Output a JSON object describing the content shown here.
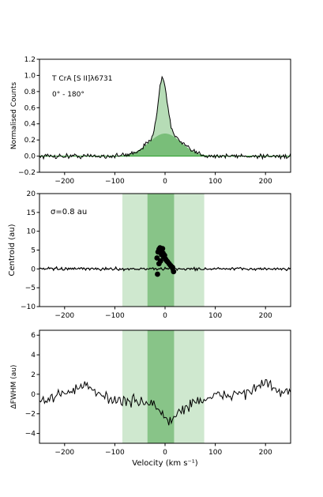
{
  "chart_data": [
    {
      "type": "line",
      "title": "",
      "annotations": [
        "T CrA [S II]λ6731",
        "0° - 180°"
      ],
      "xlabel": "",
      "ylabel": "Normalised Counts",
      "xlim": [
        -250,
        250
      ],
      "ylim": [
        -0.2,
        1.2
      ],
      "xticks": [
        -200,
        -100,
        0,
        100,
        200
      ],
      "yticks": [
        -0.2,
        0.0,
        0.2,
        0.4,
        0.6,
        0.8,
        1.0,
        1.2
      ],
      "grid": false,
      "colors": {
        "line": "#000000",
        "fill_narrow": "#7fbf7f",
        "fill_broad": "#5aaa5a",
        "fit": "#2ca02c"
      },
      "components": [
        {
          "amplitude": 0.68,
          "center": -5,
          "sigma": 9
        },
        {
          "amplitude": 0.28,
          "center": 0,
          "sigma": 32
        }
      ],
      "noise": 0.03
    },
    {
      "type": "scatter",
      "title": "",
      "annotations": [
        "σ=0.8 au"
      ],
      "xlabel": "",
      "ylabel": "Centroid (au)",
      "xlim": [
        -250,
        250
      ],
      "ylim": [
        -10,
        20
      ],
      "xticks": [
        -200,
        -100,
        0,
        100,
        200
      ],
      "yticks": [
        -10,
        -5,
        0,
        5,
        10,
        15,
        20
      ],
      "grid": false,
      "bands": [
        {
          "from": -85,
          "to": 78,
          "color": "#cfe8cf"
        },
        {
          "from": -35,
          "to": 18,
          "color": "#88c488"
        }
      ],
      "points": [
        [
          -14,
          4.5
        ],
        [
          -12,
          5.2
        ],
        [
          -10,
          5.6
        ],
        [
          -8,
          4.9
        ],
        [
          -7,
          3.8
        ],
        [
          -5,
          5.4
        ],
        [
          -4,
          4.2
        ],
        [
          -3,
          3.2
        ],
        [
          -1,
          3.6
        ],
        [
          1,
          2.6
        ],
        [
          3,
          2.2
        ],
        [
          5,
          1.9
        ],
        [
          8,
          1.4
        ],
        [
          11,
          0.9
        ],
        [
          13,
          0.6
        ],
        [
          15,
          0.4
        ],
        [
          -16,
          2.9
        ],
        [
          -12,
          1.4
        ],
        [
          -9,
          2.1
        ],
        [
          -15,
          -1.4
        ],
        [
          17,
          -0.7
        ]
      ],
      "line_noise": 0.35
    },
    {
      "type": "line",
      "title": "",
      "xlabel": "Velocity (km s⁻¹)",
      "ylabel": "ΔFWHM (au)",
      "xlim": [
        -250,
        250
      ],
      "ylim": [
        -5,
        6.5
      ],
      "xticks": [
        -200,
        -100,
        0,
        100,
        200
      ],
      "yticks": [
        -4,
        -2,
        0,
        2,
        4,
        6
      ],
      "grid": false,
      "bands": [
        {
          "from": -85,
          "to": 78,
          "color": "#cfe8cf"
        },
        {
          "from": -35,
          "to": 18,
          "color": "#88c488"
        }
      ],
      "trend": [
        [
          -250,
          -0.6
        ],
        [
          -220,
          -0.3
        ],
        [
          -190,
          0.4
        ],
        [
          -160,
          0.8
        ],
        [
          -140,
          0.2
        ],
        [
          -110,
          -0.4
        ],
        [
          -80,
          -0.8
        ],
        [
          -50,
          -0.7
        ],
        [
          -30,
          -0.9
        ],
        [
          -15,
          -1.4
        ],
        [
          0,
          -2.4
        ],
        [
          12,
          -2.9
        ],
        [
          25,
          -1.9
        ],
        [
          40,
          -1.4
        ],
        [
          60,
          -0.7
        ],
        [
          90,
          -0.4
        ],
        [
          120,
          -0.1
        ],
        [
          150,
          0.1
        ],
        [
          180,
          0.5
        ],
        [
          200,
          1.2
        ],
        [
          215,
          0.6
        ],
        [
          230,
          0.2
        ],
        [
          250,
          0.1
        ]
      ],
      "noise": 0.55
    }
  ]
}
